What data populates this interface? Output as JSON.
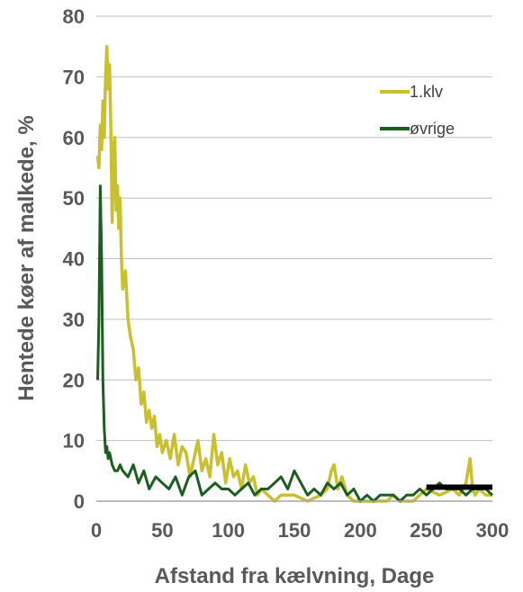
{
  "chart_data": {
    "type": "line",
    "xlabel": "Afstand fra kælvning, Dage",
    "ylabel": "Hentede køer af malkede, %",
    "xlim": [
      0,
      300
    ],
    "ylim": [
      0,
      80
    ],
    "xticks": [
      0,
      50,
      100,
      150,
      200,
      250,
      300
    ],
    "yticks": [
      0,
      10,
      20,
      30,
      40,
      50,
      60,
      70,
      80
    ],
    "grid": "horizontal",
    "legend_position": "top-right",
    "colors": {
      "1.klv": "#c9c02f",
      "øvrige": "#1b5e20",
      "reference": "#000000"
    },
    "series": [
      {
        "name": "1.klv",
        "x": [
          1,
          2,
          3,
          4,
          5,
          6,
          7,
          8,
          9,
          10,
          11,
          12,
          13,
          14,
          15,
          16,
          17,
          18,
          19,
          20,
          22,
          24,
          26,
          28,
          30,
          32,
          34,
          36,
          38,
          40,
          42,
          44,
          46,
          48,
          50,
          53,
          56,
          59,
          62,
          65,
          68,
          71,
          74,
          77,
          80,
          83,
          86,
          89,
          92,
          95,
          98,
          101,
          104,
          107,
          110,
          113,
          116,
          119,
          122,
          125,
          130,
          135,
          140,
          150,
          160,
          170,
          175,
          178,
          180,
          183,
          186,
          190,
          195,
          200,
          210,
          215,
          220,
          225,
          230,
          240,
          245,
          250,
          260,
          270,
          275,
          280,
          283,
          285,
          287,
          290,
          295,
          300
        ],
        "y": [
          57,
          55,
          62,
          58,
          66,
          60,
          70,
          75,
          68,
          72,
          62,
          46,
          58,
          60,
          48,
          52,
          45,
          50,
          40,
          35,
          38,
          30,
          27,
          25,
          20,
          22,
          16,
          18,
          13,
          15,
          12,
          14,
          9,
          11,
          8,
          10,
          7,
          11,
          6,
          9,
          8,
          4,
          7,
          10,
          5,
          7,
          4,
          11,
          6,
          8,
          3,
          7,
          4,
          5,
          2,
          6,
          3,
          4,
          1,
          2,
          1,
          0,
          1,
          1,
          0,
          1,
          2,
          5,
          6,
          2,
          4,
          1,
          0,
          0,
          0,
          0,
          0,
          1,
          0,
          0,
          1,
          2,
          1,
          2,
          1,
          3,
          7,
          2,
          1,
          2,
          1,
          1
        ]
      },
      {
        "name": "øvrige",
        "x": [
          1,
          2,
          3,
          4,
          5,
          6,
          7,
          8,
          9,
          10,
          12,
          14,
          16,
          18,
          20,
          24,
          28,
          32,
          36,
          40,
          45,
          50,
          55,
          60,
          65,
          70,
          75,
          80,
          85,
          90,
          95,
          100,
          105,
          110,
          115,
          120,
          125,
          130,
          135,
          140,
          145,
          150,
          155,
          160,
          165,
          170,
          175,
          180,
          185,
          190,
          195,
          200,
          205,
          210,
          215,
          220,
          225,
          230,
          235,
          240,
          245,
          250,
          255,
          260,
          265,
          270,
          275,
          280,
          285,
          290,
          295,
          300
        ],
        "y": [
          20,
          30,
          52,
          40,
          20,
          12,
          8,
          9,
          7,
          8,
          6,
          5,
          5,
          6,
          5,
          4,
          6,
          3,
          5,
          2,
          4,
          3,
          2,
          4,
          1,
          4,
          5,
          1,
          2,
          3,
          2,
          2,
          1,
          2,
          3,
          1,
          2,
          2,
          3,
          4,
          2,
          5,
          3,
          1,
          2,
          1,
          3,
          2,
          3,
          1,
          2,
          0,
          1,
          0,
          1,
          1,
          1,
          0,
          1,
          1,
          2,
          1,
          2,
          3,
          2,
          2,
          2,
          1,
          2,
          2,
          2,
          1
        ]
      },
      {
        "name": "",
        "x": [
          250,
          300
        ],
        "y": [
          2.3,
          2.3
        ]
      }
    ],
    "legend": [
      {
        "label": "1.klv",
        "series": "1.klv"
      },
      {
        "label": "øvrige",
        "series": "øvrige"
      }
    ]
  }
}
